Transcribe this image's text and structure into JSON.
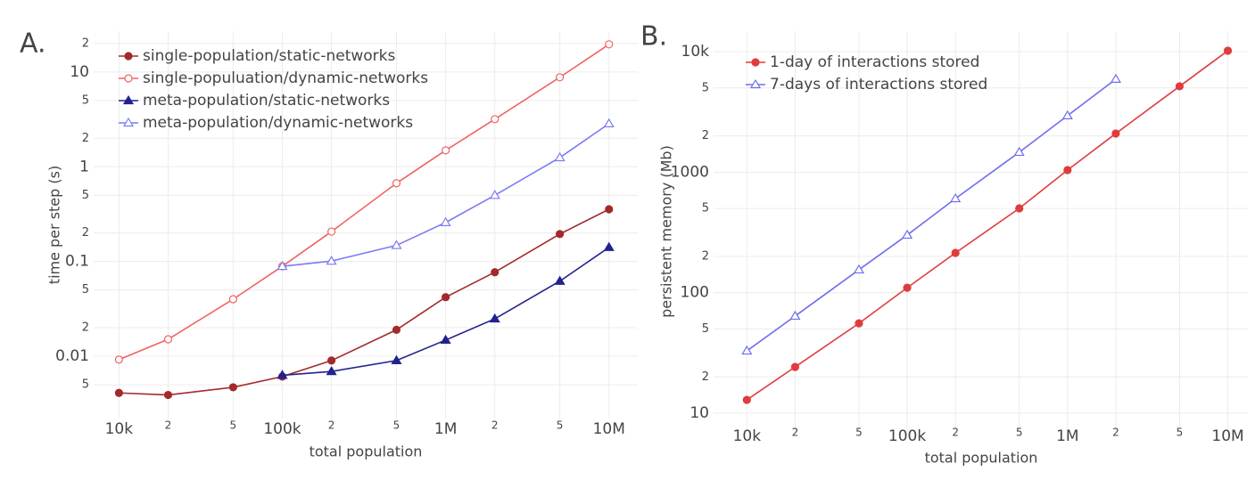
{
  "chart_data": [
    {
      "type": "line",
      "panel_label": "A.",
      "x_label": "total population",
      "y_label": "time per step (s)",
      "log_x": true,
      "log_y": true,
      "grid": true,
      "legend": "top-left",
      "x": [
        10000,
        20000,
        50000,
        100000,
        200000,
        500000,
        1000000,
        2000000,
        5000000,
        10000000
      ],
      "xlim": [
        7000,
        15000000
      ],
      "ylim": [
        0.0022,
        27
      ],
      "xticks": [
        {
          "value": 10000,
          "label": "10k"
        },
        {
          "value": 20000,
          "label": "2"
        },
        {
          "value": 50000,
          "label": "5"
        },
        {
          "value": 100000,
          "label": "100k"
        },
        {
          "value": 200000,
          "label": "2"
        },
        {
          "value": 500000,
          "label": "5"
        },
        {
          "value": 1000000,
          "label": "1M"
        },
        {
          "value": 2000000,
          "label": "2"
        },
        {
          "value": 5000000,
          "label": "5"
        },
        {
          "value": 10000000,
          "label": "10M"
        }
      ],
      "yticks": [
        {
          "value": 0.005,
          "label": "5"
        },
        0.01,
        {
          "value": 0.02,
          "label": "2"
        },
        {
          "value": 0.05,
          "label": "5"
        },
        0.1,
        {
          "value": 0.2,
          "label": "2"
        },
        {
          "value": 0.5,
          "label": "5"
        },
        1,
        {
          "value": 2,
          "label": "2"
        },
        {
          "value": 5,
          "label": "5"
        },
        10,
        {
          "value": 20,
          "label": "2"
        }
      ],
      "series": [
        {
          "name": "single-population/static-networks",
          "color": "#a32a2a",
          "marker": "circle",
          "filled": true,
          "values": [
            0.0041,
            0.0039,
            0.0047,
            0.0061,
            0.009,
            0.019,
            0.042,
            0.077,
            0.195,
            0.356
          ]
        },
        {
          "name": "single-populuation/dynamic-networks",
          "color": "#f26262",
          "marker": "circle",
          "filled": false,
          "values": [
            0.0092,
            0.0151,
            0.04,
            0.089,
            0.207,
            0.67,
            1.49,
            3.18,
            8.8,
            19.6
          ]
        },
        {
          "name": "meta-population/static-networks",
          "color": "#22228f",
          "marker": "triangle",
          "filled": true,
          "values": [
            null,
            null,
            null,
            0.0063,
            0.0069,
            0.009,
            0.0148,
            0.0248,
            0.062,
            0.141
          ]
        },
        {
          "name": "meta-population/dynamic-networks",
          "color": "#7b7bf5",
          "marker": "triangle",
          "filled": false,
          "values": [
            null,
            null,
            null,
            0.089,
            0.101,
            0.148,
            0.258,
            0.5,
            1.25,
            2.85
          ]
        }
      ]
    },
    {
      "type": "line",
      "panel_label": "B.",
      "x_label": "total population",
      "y_label": "persistent memory (Mb)",
      "log_x": true,
      "log_y": true,
      "grid": true,
      "legend": "top-left",
      "x": [
        10000,
        20000,
        50000,
        100000,
        200000,
        500000,
        1000000,
        2000000,
        5000000,
        10000000
      ],
      "xlim": [
        6200,
        13500000
      ],
      "ylim": [
        7,
        14800
      ],
      "xticks": [
        {
          "value": 10000,
          "label": "10k"
        },
        {
          "value": 20000,
          "label": "2"
        },
        {
          "value": 50000,
          "label": "5"
        },
        {
          "value": 100000,
          "label": "100k"
        },
        {
          "value": 200000,
          "label": "2"
        },
        {
          "value": 500000,
          "label": "5"
        },
        {
          "value": 1000000,
          "label": "1M"
        },
        {
          "value": 2000000,
          "label": "2"
        },
        {
          "value": 5000000,
          "label": "5"
        },
        {
          "value": 10000000,
          "label": "10M"
        }
      ],
      "yticks": [
        10,
        {
          "value": 20,
          "label": "2"
        },
        {
          "value": 50,
          "label": "5"
        },
        100,
        {
          "value": 200,
          "label": "2"
        },
        {
          "value": 500,
          "label": "5"
        },
        1000,
        {
          "value": 2000,
          "label": "2"
        },
        {
          "value": 5000,
          "label": "5"
        },
        {
          "value": 10000,
          "label": "10k"
        }
      ],
      "series": [
        {
          "name": "1-day of interactions stored",
          "color": "#e03c3c",
          "marker": "circle",
          "filled": true,
          "values": [
            12.9,
            24.2,
            55.7,
            110,
            214,
            501,
            1042,
            2094,
            5160,
            10190
          ]
        },
        {
          "name": "7-days of interactions stored",
          "color": "#6e6ef0",
          "marker": "triangle",
          "filled": false,
          "values": [
            32.9,
            64,
            155,
            301,
            604,
            1465,
            2944,
            5915,
            null,
            null
          ]
        }
      ]
    }
  ]
}
